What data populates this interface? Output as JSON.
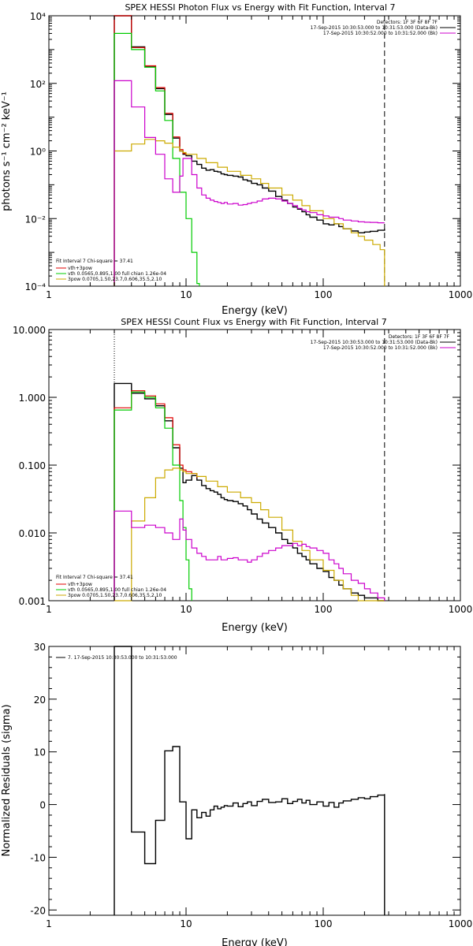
{
  "chart_data": [
    {
      "type": "line",
      "title": "SPEX HESSI Photon Flux vs Energy with Fit Function, Interval 7",
      "xlabel": "Energy (keV)",
      "ylabel": "photons s⁻¹ cm⁻² keV⁻¹",
      "xscale": "log",
      "yscale": "log",
      "xlim": [
        1,
        1000
      ],
      "ylim": [
        0.0001,
        10000
      ],
      "xtick_labels": [
        "1",
        "10",
        "100",
        "1000"
      ],
      "ytick_labels": [
        "10⁻⁴",
        "10⁻²",
        "10⁰",
        "10²",
        "10⁴"
      ],
      "legend_top_right": [
        {
          "text": "Detectors: 1F 3F 6F 8F 7F",
          "color": "#000000"
        },
        {
          "text": "17-Sep-2015 10:30:53.000 to 10:31:53.000 (Data-Bk)",
          "color": "#000000"
        },
        {
          "text": "17-Sep-2015 10:30:52.000 to 10:31:52.000 (Bk)",
          "color": "#cc00cc"
        }
      ],
      "legend_bottom_left": [
        {
          "text": "Fit Interval 7   Chi-square = 37.41",
          "color": "#000000"
        },
        {
          "text": "vth+3pow",
          "color": "#e00000"
        },
        {
          "text": "vth 0.0565,0.895,1.00  full chian 1.26e-04",
          "color": "#00cc00"
        },
        {
          "text": "3pow 0.0705,1.50,23.7,0.606,35.5,2.10",
          "color": "#ccaa00"
        }
      ],
      "vlines": [
        {
          "x": 3.0,
          "style": "dotted"
        },
        {
          "x": 280,
          "style": "dashed"
        }
      ],
      "series": [
        {
          "name": "Data-Bk",
          "color": "#000000",
          "step": true,
          "x": [
            3.0,
            3.5,
            4.0,
            4.5,
            5.0,
            5.5,
            6.0,
            6.5,
            7.0,
            7.5,
            8.0,
            8.5,
            9.0,
            9.5,
            10,
            11,
            12,
            13,
            14,
            15,
            16,
            17,
            18,
            19,
            20,
            22,
            24,
            26,
            28,
            30,
            33,
            36,
            40,
            45,
            50,
            55,
            60,
            65,
            70,
            75,
            80,
            90,
            100,
            110,
            120,
            130,
            140,
            160,
            180,
            200,
            220,
            250,
            280
          ],
          "y": [
            10000,
            10000,
            1200,
            1200,
            320,
            320,
            70,
            70,
            12,
            12,
            2.4,
            2.4,
            1.0,
            0.8,
            0.72,
            0.5,
            0.4,
            0.31,
            0.27,
            0.28,
            0.25,
            0.24,
            0.21,
            0.2,
            0.19,
            0.18,
            0.17,
            0.14,
            0.13,
            0.11,
            0.1,
            0.08,
            0.065,
            0.045,
            0.035,
            0.028,
            0.022,
            0.019,
            0.016,
            0.013,
            0.011,
            0.009,
            0.007,
            0.0065,
            0.007,
            0.0058,
            0.005,
            0.0043,
            0.0038,
            0.004,
            0.0042,
            0.0045,
            0.005
          ]
        },
        {
          "name": "vth+3pow",
          "color": "#e00000",
          "step": true,
          "x": [
            3.0,
            3.5,
            4.0,
            4.5,
            5.0,
            5.5,
            6.0,
            6.5,
            7.0,
            7.5,
            8.0,
            8.5,
            9.0,
            9.5,
            10
          ],
          "y": [
            10000,
            10000,
            1150,
            1150,
            330,
            330,
            75,
            75,
            13,
            13,
            2.6,
            2.6,
            1.1,
            0.85,
            0.75
          ]
        },
        {
          "name": "vth",
          "color": "#00cc00",
          "step": true,
          "x": [
            3.0,
            3.5,
            4.0,
            4.5,
            5.0,
            5.5,
            6.0,
            6.5,
            7.0,
            7.5,
            8.0,
            8.5,
            9.0,
            9.5,
            10,
            11,
            12,
            12.5
          ],
          "y": [
            3000,
            3000,
            1000,
            1000,
            300,
            300,
            60,
            60,
            8,
            8,
            0.6,
            0.6,
            0.06,
            0.06,
            0.01,
            0.001,
            0.00012,
            0.0001
          ]
        },
        {
          "name": "3pow",
          "color": "#ccaa00",
          "step": true,
          "x": [
            3.0,
            3.5,
            4.0,
            4.5,
            5.0,
            5.5,
            6.0,
            6.5,
            7.0,
            7.5,
            8.0,
            8.5,
            9.0,
            9.5,
            10,
            12,
            14,
            17,
            20,
            25,
            30,
            35,
            40,
            50,
            60,
            70,
            80,
            100,
            120,
            140,
            160,
            180,
            200,
            230,
            260,
            280
          ],
          "y": [
            1.0,
            1.0,
            1.6,
            1.6,
            2.2,
            2.2,
            2.0,
            2.0,
            1.7,
            1.7,
            1.3,
            1.3,
            1.0,
            0.9,
            0.8,
            0.6,
            0.45,
            0.33,
            0.25,
            0.19,
            0.15,
            0.11,
            0.08,
            0.05,
            0.035,
            0.024,
            0.017,
            0.01,
            0.007,
            0.005,
            0.0038,
            0.003,
            0.0023,
            0.0017,
            0.0012,
            0.0001
          ]
        },
        {
          "name": "Bk",
          "color": "#cc00cc",
          "step": true,
          "x": [
            3.0,
            3.5,
            4.0,
            4.5,
            5.0,
            5.5,
            6.0,
            6.5,
            7.0,
            7.5,
            8.0,
            8.5,
            9.0,
            9.5,
            10,
            11,
            12,
            13,
            14,
            15,
            16,
            17,
            18,
            19,
            20,
            22,
            24,
            26,
            28,
            30,
            33,
            36,
            40,
            45,
            50,
            55,
            60,
            65,
            70,
            75,
            80,
            90,
            100,
            110,
            120,
            130,
            140,
            160,
            180,
            200,
            220,
            250,
            280
          ],
          "y": [
            120,
            120,
            20,
            20,
            2.5,
            2.5,
            0.8,
            0.8,
            0.15,
            0.15,
            0.06,
            0.06,
            0.18,
            0.6,
            0.6,
            0.2,
            0.08,
            0.05,
            0.04,
            0.035,
            0.032,
            0.03,
            0.028,
            0.03,
            0.027,
            0.028,
            0.025,
            0.026,
            0.028,
            0.03,
            0.033,
            0.038,
            0.04,
            0.038,
            0.033,
            0.028,
            0.024,
            0.02,
            0.018,
            0.016,
            0.015,
            0.013,
            0.012,
            0.011,
            0.011,
            0.01,
            0.009,
            0.0085,
            0.008,
            0.0078,
            0.0077,
            0.0075,
            0.0075
          ]
        }
      ]
    },
    {
      "type": "line",
      "title": "SPEX HESSI Count Flux vs Energy with Fit Function, Interval 7",
      "xlabel": "Energy (keV)",
      "ylabel": "",
      "xscale": "log",
      "yscale": "log",
      "xlim": [
        1,
        1000
      ],
      "ylim": [
        0.001,
        10
      ],
      "xtick_labels": [
        "1",
        "10",
        "100",
        "1000"
      ],
      "ytick_labels": [
        "0.001",
        "0.010",
        "0.100",
        "1.000",
        "10.000"
      ],
      "legend_top_right": [
        {
          "text": "Detectors: 1F 3F 6F 8F 7F",
          "color": "#000000"
        },
        {
          "text": "17-Sep-2015 10:30:53.000 to 10:31:53.000 (Data-Bk)",
          "color": "#000000"
        },
        {
          "text": "17-Sep-2015 10:30:52.000 to 10:31:52.000 (Bk)",
          "color": "#cc00cc"
        }
      ],
      "legend_bottom_left": [
        {
          "text": "Fit Interval 7   Chi-square = 37.41",
          "color": "#000000"
        },
        {
          "text": "vth+3pow",
          "color": "#e00000"
        },
        {
          "text": "vth 0.0565,0.895,1.00  full chian 1.26e-04",
          "color": "#00cc00"
        },
        {
          "text": "3pow 0.0705,1.50,23.7,0.606,35.5,2.10",
          "color": "#ccaa00"
        }
      ],
      "vlines": [
        {
          "x": 3.0,
          "style": "dotted"
        },
        {
          "x": 280,
          "style": "dashed"
        }
      ],
      "series": [
        {
          "name": "Data-Bk",
          "color": "#000000",
          "step": true,
          "x": [
            3.0,
            3.5,
            4.0,
            4.5,
            5.0,
            5.5,
            6.0,
            6.5,
            7.0,
            7.5,
            8.0,
            8.5,
            9.0,
            9.5,
            10,
            11,
            12,
            13,
            14,
            15,
            16,
            17,
            18,
            19,
            20,
            22,
            24,
            26,
            28,
            30,
            33,
            36,
            40,
            45,
            50,
            55,
            60,
            65,
            70,
            75,
            80,
            90,
            100,
            110,
            120,
            130,
            140,
            160,
            180,
            200,
            220,
            250,
            280
          ],
          "y": [
            1.6,
            1.6,
            1.15,
            1.15,
            0.95,
            0.95,
            0.75,
            0.75,
            0.45,
            0.45,
            0.18,
            0.18,
            0.09,
            0.055,
            0.06,
            0.07,
            0.06,
            0.05,
            0.045,
            0.042,
            0.04,
            0.037,
            0.033,
            0.031,
            0.03,
            0.029,
            0.027,
            0.025,
            0.022,
            0.019,
            0.016,
            0.014,
            0.012,
            0.01,
            0.008,
            0.007,
            0.006,
            0.005,
            0.0045,
            0.004,
            0.0035,
            0.003,
            0.0027,
            0.0022,
            0.002,
            0.0017,
            0.0015,
            0.0013,
            0.0012,
            0.0011,
            0.0011,
            0.001,
            0.001
          ]
        },
        {
          "name": "vth+3pow",
          "color": "#e00000",
          "step": true,
          "x": [
            3.0,
            3.5,
            4.0,
            4.5,
            5.0,
            5.5,
            6.0,
            6.5,
            7.0,
            7.5,
            8.0,
            8.5,
            9.0,
            9.5,
            10,
            11,
            12
          ],
          "y": [
            0.7,
            0.7,
            1.25,
            1.25,
            1.05,
            1.05,
            0.8,
            0.8,
            0.5,
            0.5,
            0.2,
            0.2,
            0.1,
            0.085,
            0.08,
            0.075,
            0.065
          ]
        },
        {
          "name": "vth",
          "color": "#00cc00",
          "step": true,
          "x": [
            3.0,
            3.5,
            4.0,
            4.5,
            5.0,
            5.5,
            6.0,
            6.5,
            7.0,
            7.5,
            8.0,
            8.5,
            9.0,
            9.5,
            10,
            10.5,
            11
          ],
          "y": [
            0.65,
            0.65,
            1.2,
            1.2,
            1.0,
            1.0,
            0.7,
            0.7,
            0.35,
            0.35,
            0.1,
            0.1,
            0.03,
            0.012,
            0.004,
            0.0015,
            0.001
          ]
        },
        {
          "name": "3pow",
          "color": "#ccaa00",
          "step": true,
          "x": [
            3.0,
            3.5,
            4.0,
            4.5,
            5.0,
            5.5,
            6.0,
            6.5,
            7.0,
            7.5,
            8.0,
            8.5,
            9.0,
            9.5,
            10,
            12,
            14,
            17,
            20,
            25,
            30,
            35,
            40,
            50,
            60,
            70,
            80,
            100,
            120,
            140,
            160,
            180,
            200,
            230,
            260,
            280
          ],
          "y": [
            0.001,
            0.001,
            0.015,
            0.015,
            0.033,
            0.033,
            0.065,
            0.065,
            0.085,
            0.085,
            0.09,
            0.09,
            0.085,
            0.08,
            0.075,
            0.068,
            0.058,
            0.048,
            0.04,
            0.033,
            0.028,
            0.022,
            0.017,
            0.011,
            0.0075,
            0.0055,
            0.004,
            0.0028,
            0.002,
            0.0015,
            0.0012,
            0.001,
            0.001,
            0.001,
            0.001,
            0.001
          ]
        },
        {
          "name": "Bk",
          "color": "#cc00cc",
          "step": true,
          "x": [
            3.0,
            3.5,
            4.0,
            4.5,
            5.0,
            5.5,
            6.0,
            6.5,
            7.0,
            7.5,
            8.0,
            8.5,
            9.0,
            9.5,
            10,
            11,
            12,
            13,
            14,
            15,
            16,
            17,
            18,
            19,
            20,
            22,
            24,
            26,
            28,
            30,
            33,
            36,
            40,
            45,
            50,
            55,
            60,
            65,
            70,
            75,
            80,
            90,
            100,
            110,
            120,
            130,
            140,
            160,
            180,
            200,
            220,
            250,
            280
          ],
          "y": [
            0.021,
            0.021,
            0.012,
            0.012,
            0.013,
            0.013,
            0.012,
            0.012,
            0.01,
            0.01,
            0.008,
            0.008,
            0.016,
            0.011,
            0.008,
            0.006,
            0.005,
            0.0045,
            0.004,
            0.004,
            0.004,
            0.0045,
            0.004,
            0.004,
            0.0042,
            0.0043,
            0.004,
            0.004,
            0.0037,
            0.004,
            0.0045,
            0.005,
            0.0055,
            0.006,
            0.0065,
            0.0065,
            0.007,
            0.0065,
            0.0068,
            0.0063,
            0.006,
            0.0055,
            0.005,
            0.004,
            0.0035,
            0.003,
            0.0025,
            0.002,
            0.0018,
            0.0015,
            0.0013,
            0.0011,
            0.001
          ]
        }
      ]
    },
    {
      "type": "line",
      "title": "",
      "xlabel": "Energy (keV)",
      "ylabel": "Normalized Residuals (sigma)",
      "xscale": "log",
      "yscale": "linear",
      "xlim": [
        1,
        1000
      ],
      "ylim": [
        -21,
        30
      ],
      "xtick_labels": [
        "1",
        "10",
        "100",
        "1000"
      ],
      "ytick_labels": [
        "-20",
        "-10",
        "0",
        "10",
        "20",
        "30"
      ],
      "legend": [
        {
          "text": "7. 17-Sep-2015 10:30:53.000 to 10:31:53.000",
          "color": "#000000"
        }
      ],
      "series": [
        {
          "name": "7. 17-Sep-2015 10:30:53.000 to 10:31:53.000",
          "color": "#000000",
          "step": true,
          "x": [
            3.0,
            3.5,
            4.0,
            4.5,
            5.0,
            5.5,
            6.0,
            6.5,
            7.0,
            7.5,
            8.0,
            8.5,
            9.0,
            9.5,
            10,
            11,
            12,
            13,
            14,
            15,
            16,
            17,
            18,
            19,
            20,
            22,
            24,
            26,
            28,
            30,
            33,
            36,
            40,
            45,
            50,
            55,
            60,
            65,
            70,
            75,
            80,
            90,
            100,
            110,
            120,
            130,
            140,
            160,
            180,
            200,
            220,
            250,
            280
          ],
          "y": [
            30,
            30,
            -5.2,
            -5.2,
            -11.2,
            -11.2,
            -3.0,
            -3.0,
            10.2,
            10.2,
            11.0,
            11.0,
            0.5,
            0.5,
            -6.5,
            -1.0,
            -2.5,
            -1.5,
            -2.2,
            -1.0,
            -0.3,
            -0.8,
            -0.5,
            -0.2,
            -0.3,
            0.3,
            -0.4,
            0.2,
            0.5,
            -0.2,
            0.6,
            1.0,
            0.4,
            0.5,
            1.1,
            0.2,
            0.6,
            1.0,
            0.3,
            0.8,
            0.0,
            0.5,
            -0.3,
            0.4,
            -0.5,
            0.3,
            0.7,
            1.0,
            1.3,
            1.1,
            1.5,
            1.8,
            2.0
          ]
        }
      ]
    }
  ]
}
